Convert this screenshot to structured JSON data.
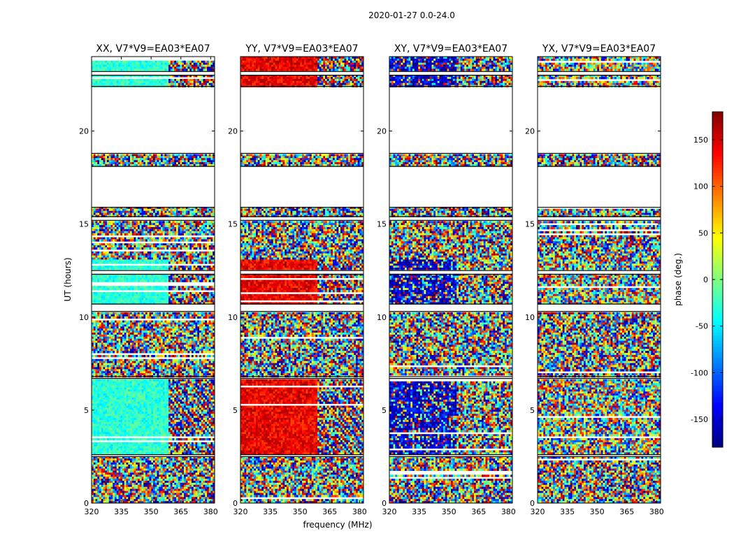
{
  "figure": {
    "suptitle": "2020-01-27 0.0-24.0"
  },
  "chart_data": {
    "type": "heatmap",
    "title": "2020-01-27 0.0-24.0",
    "xlabel": "frequency (MHz)",
    "ylabel": "UT (hours)",
    "xlim": [
      320,
      382
    ],
    "ylim": [
      0,
      24
    ],
    "xticks": [
      320,
      335,
      350,
      365,
      380
    ],
    "yticks": [
      0,
      5,
      10,
      15,
      20
    ],
    "panels": [
      {
        "title": "XX, V7*V9=EA03*EA07",
        "mode": "xx"
      },
      {
        "title": "YY, V7*V9=EA03*EA07",
        "mode": "yy"
      },
      {
        "title": "XY, V7*V9=EA03*EA07",
        "mode": "xy"
      },
      {
        "title": "YX, V7*V9=EA03*EA07",
        "mode": "yx"
      }
    ],
    "colorbar": {
      "label": "phase (deg.)",
      "range": [
        -180,
        180
      ],
      "ticks": [
        150,
        100,
        50,
        0,
        -50,
        -100,
        -150
      ],
      "colormap": "jet"
    },
    "data_segments_hours": [
      [
        0,
        2.5
      ],
      [
        2.6,
        6.7
      ],
      [
        6.8,
        10.3
      ],
      [
        10.7,
        12.3
      ],
      [
        12.5,
        15.2
      ],
      [
        15.4,
        15.9
      ],
      [
        18.1,
        18.8
      ],
      [
        22.4,
        23.0
      ],
      [
        23.2,
        24
      ]
    ]
  },
  "colors": {
    "nodata": "#ffffff",
    "axis": "#000000"
  }
}
